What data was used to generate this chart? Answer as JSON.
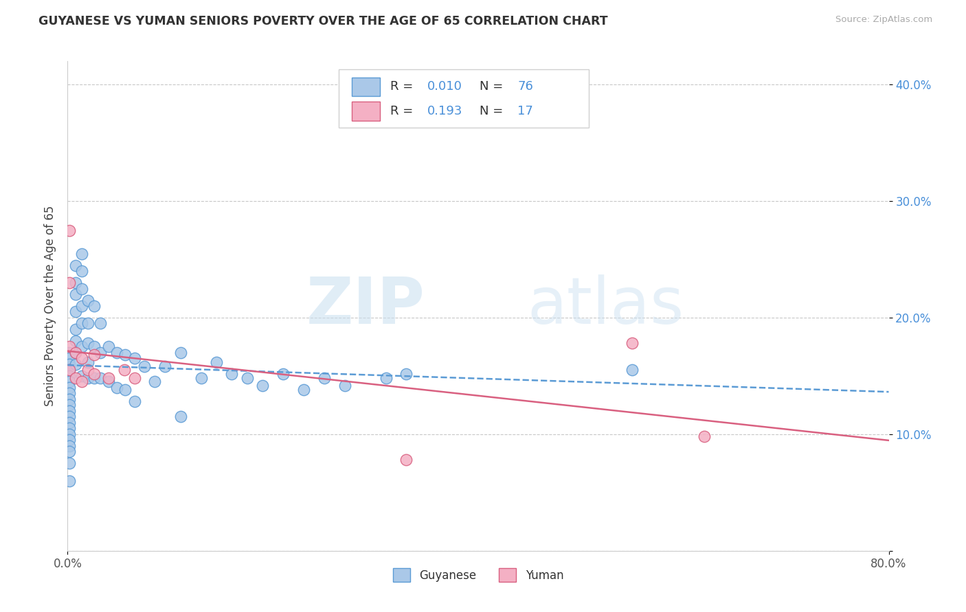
{
  "title": "GUYANESE VS YUMAN SENIORS POVERTY OVER THE AGE OF 65 CORRELATION CHART",
  "source": "Source: ZipAtlas.com",
  "ylabel": "Seniors Poverty Over the Age of 65",
  "xlim": [
    0.0,
    0.8
  ],
  "ylim": [
    0.0,
    0.42
  ],
  "ytick_positions": [
    0.0,
    0.1,
    0.2,
    0.3,
    0.4
  ],
  "ytick_labels": [
    "",
    "10.0%",
    "20.0%",
    "30.0%",
    "40.0%"
  ],
  "grid_color": "#c8c8c8",
  "background_color": "#ffffff",
  "watermark_zip": "ZIP",
  "watermark_atlas": "atlas",
  "guyanese_color": "#aac8e8",
  "guyanese_edge_color": "#5b9bd5",
  "yuman_color": "#f4b0c4",
  "yuman_edge_color": "#d96080",
  "guyanese_line_color": "#5b9bd5",
  "yuman_line_color": "#d96080",
  "scatter_size": 140,
  "guyanese_x": [
    0.002,
    0.002,
    0.002,
    0.002,
    0.002,
    0.002,
    0.002,
    0.002,
    0.002,
    0.002,
    0.002,
    0.002,
    0.002,
    0.002,
    0.002,
    0.002,
    0.002,
    0.002,
    0.002,
    0.002,
    0.008,
    0.008,
    0.008,
    0.008,
    0.008,
    0.008,
    0.008,
    0.008,
    0.014,
    0.014,
    0.014,
    0.014,
    0.014,
    0.014,
    0.014,
    0.02,
    0.02,
    0.02,
    0.02,
    0.02,
    0.026,
    0.026,
    0.026,
    0.032,
    0.032,
    0.032,
    0.04,
    0.04,
    0.048,
    0.048,
    0.056,
    0.056,
    0.065,
    0.065,
    0.075,
    0.085,
    0.095,
    0.11,
    0.11,
    0.13,
    0.145,
    0.16,
    0.175,
    0.19,
    0.21,
    0.23,
    0.25,
    0.27,
    0.31,
    0.33,
    0.55
  ],
  "guyanese_y": [
    0.17,
    0.165,
    0.16,
    0.155,
    0.15,
    0.145,
    0.14,
    0.135,
    0.13,
    0.125,
    0.12,
    0.115,
    0.11,
    0.105,
    0.1,
    0.095,
    0.09,
    0.085,
    0.075,
    0.06,
    0.245,
    0.23,
    0.22,
    0.205,
    0.19,
    0.18,
    0.17,
    0.16,
    0.255,
    0.24,
    0.225,
    0.21,
    0.195,
    0.175,
    0.15,
    0.215,
    0.195,
    0.178,
    0.162,
    0.148,
    0.21,
    0.175,
    0.148,
    0.195,
    0.17,
    0.148,
    0.175,
    0.145,
    0.17,
    0.14,
    0.168,
    0.138,
    0.165,
    0.128,
    0.158,
    0.145,
    0.158,
    0.17,
    0.115,
    0.148,
    0.162,
    0.152,
    0.148,
    0.142,
    0.152,
    0.138,
    0.148,
    0.142,
    0.148,
    0.152,
    0.155
  ],
  "yuman_x": [
    0.002,
    0.002,
    0.002,
    0.002,
    0.008,
    0.008,
    0.014,
    0.014,
    0.02,
    0.026,
    0.026,
    0.04,
    0.055,
    0.065,
    0.33,
    0.55,
    0.62
  ],
  "yuman_y": [
    0.275,
    0.23,
    0.175,
    0.155,
    0.17,
    0.148,
    0.165,
    0.145,
    0.155,
    0.168,
    0.152,
    0.148,
    0.155,
    0.148,
    0.078,
    0.178,
    0.098
  ]
}
